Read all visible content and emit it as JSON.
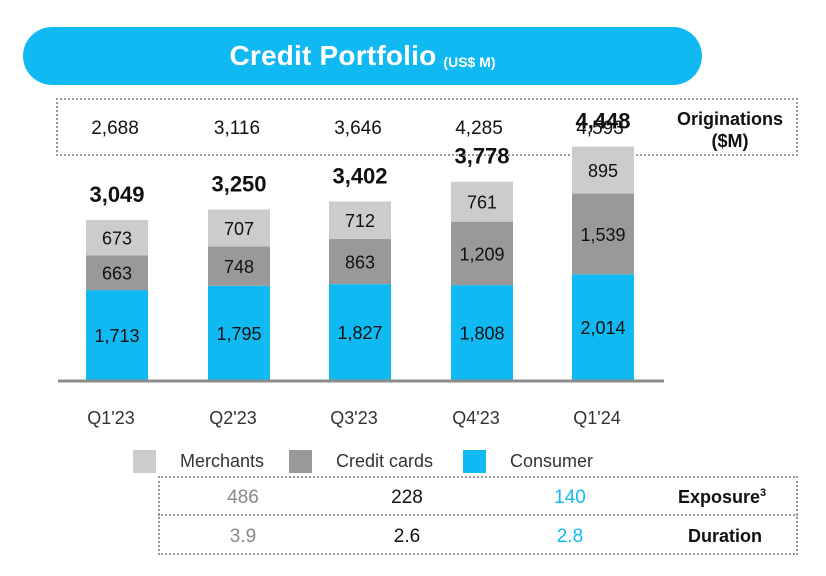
{
  "header": {
    "title": "Credit Portfolio",
    "unit": "(US$ M)"
  },
  "originations": {
    "label_line1": "Originations",
    "label_line2": "($M)",
    "values": [
      "2,688",
      "3,116",
      "3,646",
      "4,285",
      "4,593"
    ]
  },
  "chart_data": {
    "type": "bar",
    "stacked": true,
    "categories": [
      "Q1'23",
      "Q2'23",
      "Q3'23",
      "Q4'23",
      "Q1'24"
    ],
    "series": [
      {
        "name": "Consumer",
        "values": [
          1713,
          1795,
          1827,
          1808,
          2014
        ],
        "labels": [
          "1,713",
          "1,795",
          "1,827",
          "1,808",
          "2,014"
        ],
        "color": "#10b9f2"
      },
      {
        "name": "Credit cards",
        "values": [
          663,
          748,
          863,
          1209,
          1539
        ],
        "labels": [
          "663",
          "748",
          "863",
          "1,209",
          "1,539"
        ],
        "color": "#999999"
      },
      {
        "name": "Merchants",
        "values": [
          673,
          707,
          712,
          761,
          895
        ],
        "labels": [
          "673",
          "707",
          "712",
          "761",
          "895"
        ],
        "color": "#cccccc"
      }
    ],
    "totals": [
      "3,049",
      "3,250",
      "3,402",
      "3,778",
      "4,448"
    ],
    "ylim": [
      0,
      4500
    ],
    "grid": false
  },
  "legend": {
    "items": [
      {
        "label": "Merchants",
        "color": "#cccccc"
      },
      {
        "label": "Credit cards",
        "color": "#999999"
      },
      {
        "label": "Consumer",
        "color": "#10b9f2"
      }
    ]
  },
  "exposure": {
    "label": "Exposure",
    "sup": "3",
    "values": [
      "486",
      "228",
      "140"
    ]
  },
  "duration": {
    "label": "Duration",
    "values": [
      "3.9",
      "2.6",
      "2.8"
    ]
  },
  "colors": {
    "accent": "#10b9f2",
    "merchants_text": "#8a8a8a",
    "credit_text": "#111111",
    "consumer_text": "#10b9f2"
  }
}
